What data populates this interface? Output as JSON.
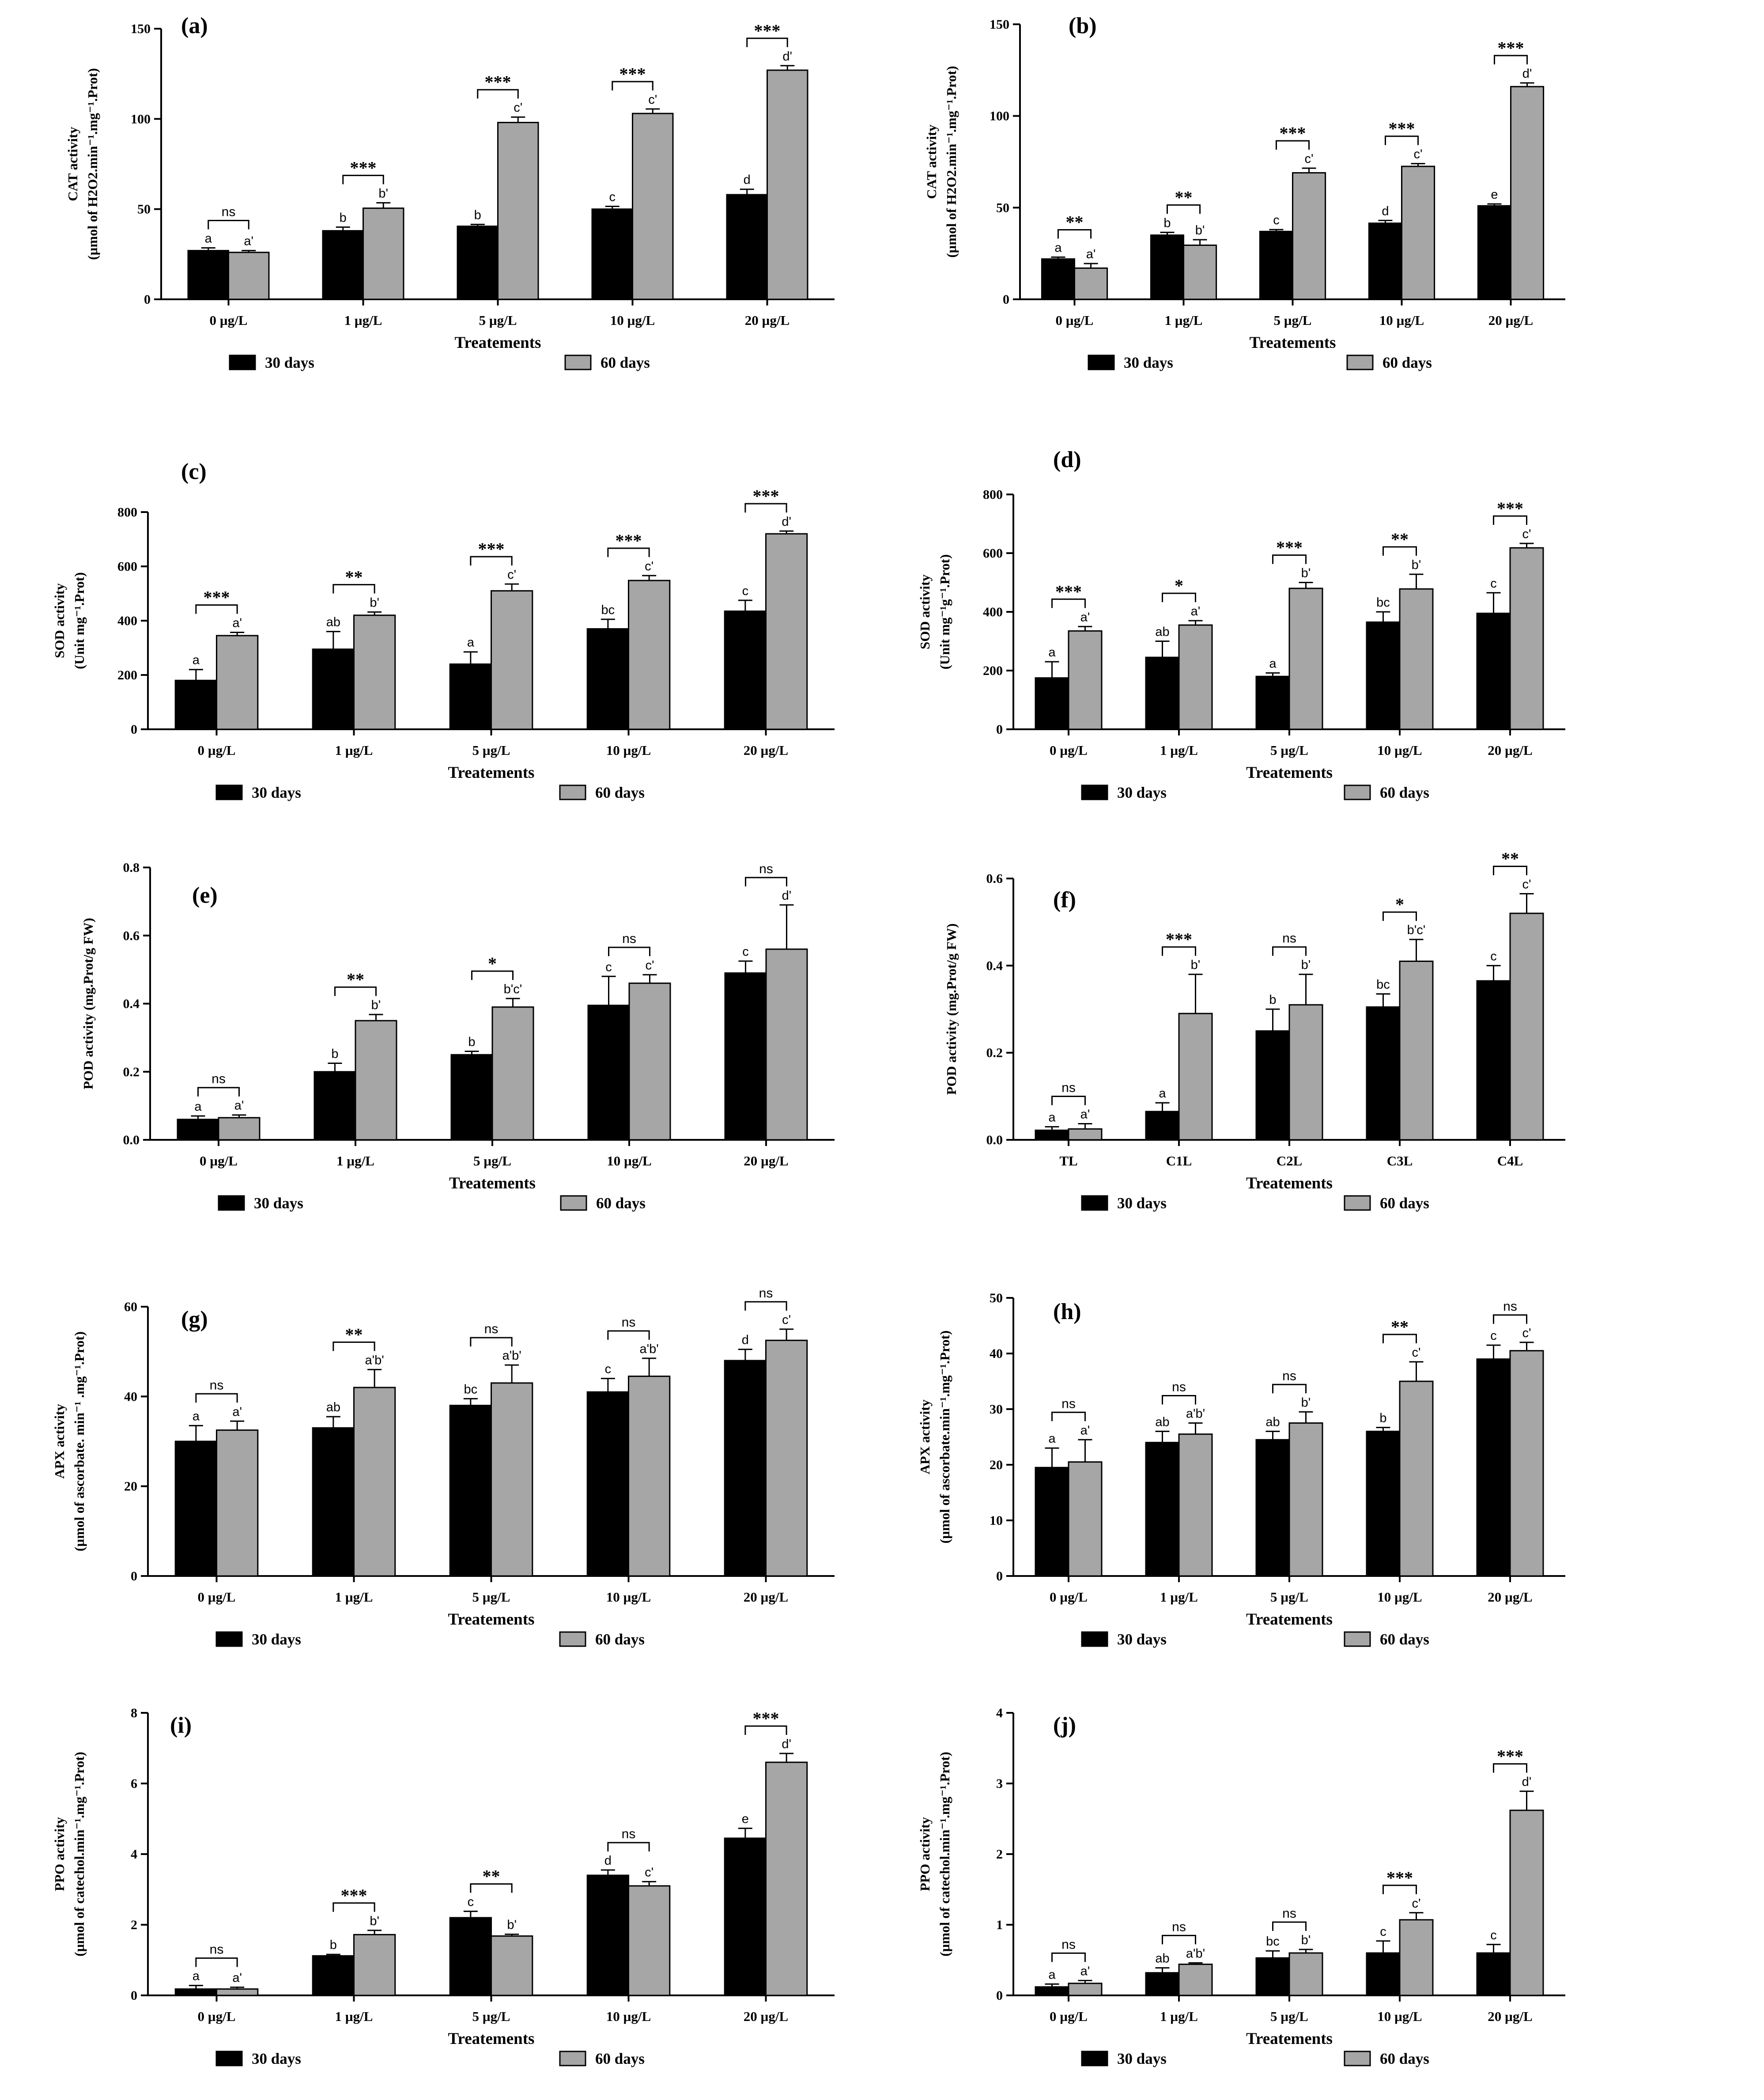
{
  "colors": {
    "series1": "#000000",
    "series2": "#a6a6a6",
    "axis": "#000000"
  },
  "chart_data": [
    {
      "type": "bar",
      "panel": "(a)",
      "ylabel": [
        "CAT activity",
        "(µmol of H2O2.min⁻¹.mg⁻¹.Prot)"
      ],
      "xlabel": "Treatements",
      "categories": [
        "0 µg/L",
        "1 µg/L",
        "5 µg/L",
        "10 µg/L",
        "20 µg/L"
      ],
      "ylim": [
        0,
        150
      ],
      "yticks": [
        0,
        50,
        100,
        150
      ],
      "series": [
        {
          "name": "30 days",
          "values": [
            27,
            38,
            40.5,
            50,
            58
          ],
          "errors": [
            1.5,
            2,
            1,
            1.5,
            3
          ],
          "letters": [
            "a",
            "b",
            "b",
            "c",
            "d"
          ]
        },
        {
          "name": "60 days",
          "values": [
            26,
            50.5,
            98,
            103,
            127
          ],
          "errors": [
            1,
            3,
            3,
            2.5,
            2.5
          ],
          "letters": [
            "a'",
            "b'",
            "c'",
            "c'",
            "d'"
          ]
        }
      ],
      "significance": [
        "ns",
        "***",
        "***",
        "***",
        "***"
      ]
    },
    {
      "type": "bar",
      "panel": "(b)",
      "ylabel": [
        "CAT activity",
        "(µmol of H2O2.min⁻¹.mg⁻¹.Prot)"
      ],
      "xlabel": "Treatements",
      "categories": [
        "0 µg/L",
        "1 µg/L",
        "5 µg/L",
        "10 µg/L",
        "20 µg/L"
      ],
      "ylim": [
        0,
        150
      ],
      "yticks": [
        0,
        50,
        100,
        150
      ],
      "series": [
        {
          "name": "30 days",
          "values": [
            22,
            35,
            37,
            41.5,
            51
          ],
          "errors": [
            1,
            1.5,
            1,
            1.5,
            1
          ],
          "letters": [
            "a",
            "b",
            "c",
            "d",
            "e"
          ]
        },
        {
          "name": "60 days",
          "values": [
            17,
            29.5,
            69,
            72.5,
            116
          ],
          "errors": [
            2.5,
            3,
            2.5,
            1.5,
            2
          ],
          "letters": [
            "a'",
            "b'",
            "c'",
            "c'",
            "d'"
          ]
        }
      ],
      "significance": [
        "**",
        "**",
        "***",
        "***",
        "***"
      ]
    },
    {
      "type": "bar",
      "panel": "(c)",
      "ylabel": [
        "SOD activity",
        "(Unit mg⁻¹.Prot)"
      ],
      "xlabel": "Treatements",
      "categories": [
        "0 µg/L",
        "1 µg/L",
        "5 µg/L",
        "10 µg/L",
        "20 µg/L"
      ],
      "ylim": [
        0,
        800
      ],
      "yticks": [
        0,
        200,
        400,
        600,
        800
      ],
      "series": [
        {
          "name": "30 days",
          "values": [
            180,
            295,
            240,
            370,
            435
          ],
          "errors": [
            40,
            65,
            45,
            35,
            40
          ],
          "letters": [
            "a",
            "ab",
            "a",
            "bc",
            "c"
          ]
        },
        {
          "name": "60 days",
          "values": [
            345,
            420,
            510,
            548,
            720
          ],
          "errors": [
            12,
            12,
            25,
            18,
            10
          ],
          "letters": [
            "a'",
            "b'",
            "c'",
            "c'",
            "d'"
          ]
        }
      ],
      "significance": [
        "***",
        "**",
        "***",
        "***",
        "***"
      ]
    },
    {
      "type": "bar",
      "panel": "(d)",
      "ylabel": [
        "SOD activity",
        "(Unit mg⁻¹g⁻¹.Prot)"
      ],
      "xlabel": "Treatements",
      "categories": [
        "0 µg/L",
        "1 µg/L",
        "5 µg/L",
        "10 µg/L",
        "20 µg/L"
      ],
      "ylim": [
        0,
        800
      ],
      "yticks": [
        0,
        200,
        400,
        600,
        800
      ],
      "series": [
        {
          "name": "30 days",
          "values": [
            175,
            245,
            180,
            365,
            395
          ],
          "errors": [
            55,
            55,
            12,
            35,
            70
          ],
          "letters": [
            "a",
            "ab",
            "a",
            "bc",
            "c"
          ]
        },
        {
          "name": "60 days",
          "values": [
            335,
            355,
            480,
            478,
            618
          ],
          "errors": [
            15,
            15,
            20,
            50,
            15
          ],
          "letters": [
            "a'",
            "a'",
            "b'",
            "b'",
            "c'"
          ]
        }
      ],
      "significance": [
        "***",
        "*",
        "***",
        "**",
        "***"
      ]
    },
    {
      "type": "bar",
      "panel": "(e)",
      "ylabel": [
        "POD activity  (mg.Prot/g FW)"
      ],
      "xlabel": "Treatements",
      "categories": [
        "0 µg/L",
        "1 µg/L",
        "5 µg/L",
        "10 µg/L",
        "20 µg/L"
      ],
      "ylim": [
        0,
        0.8
      ],
      "yticks": [
        0.0,
        0.2,
        0.4,
        0.6,
        0.8
      ],
      "series": [
        {
          "name": "30 days",
          "values": [
            0.06,
            0.2,
            0.25,
            0.395,
            0.49
          ],
          "errors": [
            0.01,
            0.025,
            0.01,
            0.085,
            0.035
          ],
          "letters": [
            "a",
            "b",
            "b",
            "c",
            "c"
          ]
        },
        {
          "name": "60 days",
          "values": [
            0.065,
            0.35,
            0.39,
            0.46,
            0.56
          ],
          "errors": [
            0.008,
            0.018,
            0.025,
            0.025,
            0.13
          ],
          "letters": [
            "a'",
            "b'",
            "b'c'",
            "c'",
            "d'"
          ]
        }
      ],
      "significance": [
        "ns",
        "**",
        "*",
        "ns",
        "ns"
      ]
    },
    {
      "type": "bar",
      "panel": "(f)",
      "ylabel": [
        "POD activity (mg.Prot/g FW)"
      ],
      "xlabel": "Treatements",
      "categories": [
        "TL",
        "C1L",
        "C2L",
        "C3L",
        "C4L"
      ],
      "ylim": [
        0,
        0.6
      ],
      "yticks": [
        0.0,
        0.2,
        0.4,
        0.6
      ],
      "series": [
        {
          "name": "30 days",
          "values": [
            0.022,
            0.065,
            0.25,
            0.305,
            0.365
          ],
          "errors": [
            0.008,
            0.02,
            0.05,
            0.03,
            0.035
          ],
          "letters": [
            "a",
            "a",
            "b",
            "bc",
            "c"
          ]
        },
        {
          "name": "60 days",
          "values": [
            0.025,
            0.29,
            0.31,
            0.41,
            0.52
          ],
          "errors": [
            0.012,
            0.09,
            0.07,
            0.05,
            0.045
          ],
          "letters": [
            "a'",
            "b'",
            "b'",
            "b'c'",
            "c'"
          ]
        }
      ],
      "significance": [
        "ns",
        "***",
        "ns",
        "*",
        "**"
      ]
    },
    {
      "type": "bar",
      "panel": "(g)",
      "ylabel": [
        "APX activity",
        "(µmol of ascorbate. min⁻¹ .mg⁻¹.Prot)"
      ],
      "xlabel": "Treatements",
      "categories": [
        "0 µg/L",
        "1 µg/L",
        "5 µg/L",
        "10 µg/L",
        "20 µg/L"
      ],
      "ylim": [
        0,
        60
      ],
      "yticks": [
        0,
        20,
        40,
        60
      ],
      "series": [
        {
          "name": "30 days",
          "values": [
            30,
            33,
            38,
            41,
            48
          ],
          "errors": [
            3.5,
            2.5,
            1.5,
            3,
            2.5
          ],
          "letters": [
            "a",
            "ab",
            "bc",
            "c",
            "d"
          ]
        },
        {
          "name": "60 days",
          "values": [
            32.5,
            42,
            43,
            44.5,
            52.5
          ],
          "errors": [
            2,
            4,
            4,
            4,
            2.5
          ],
          "letters": [
            "a'",
            "a'b'",
            "a'b'",
            "a'b'",
            "c'"
          ]
        }
      ],
      "significance": [
        "ns",
        "**",
        "ns",
        "ns",
        "ns"
      ]
    },
    {
      "type": "bar",
      "panel": "(h)",
      "ylabel": [
        "APX activity",
        "(µmol of ascorbate.min⁻¹.mg⁻¹.Prot)"
      ],
      "xlabel": "Treatements",
      "categories": [
        "0 µg/L",
        "1 µg/L",
        "5 µg/L",
        "10 µg/L",
        "20 µg/L"
      ],
      "ylim": [
        0,
        50
      ],
      "yticks": [
        0,
        10,
        20,
        30,
        40,
        50
      ],
      "series": [
        {
          "name": "30 days",
          "values": [
            19.5,
            24,
            24.5,
            26,
            39
          ],
          "errors": [
            3.5,
            2,
            1.5,
            0.7,
            2.5
          ],
          "letters": [
            "a",
            "ab",
            "ab",
            "b",
            "c"
          ]
        },
        {
          "name": "60 days",
          "values": [
            20.5,
            25.5,
            27.5,
            35,
            40.5
          ],
          "errors": [
            4,
            2,
            2,
            3.5,
            1.5
          ],
          "letters": [
            "a'",
            "a'b'",
            "b'",
            "c'",
            "c'"
          ]
        }
      ],
      "significance": [
        "ns",
        "ns",
        "ns",
        "**",
        "ns"
      ]
    },
    {
      "type": "bar",
      "panel": "(i)",
      "ylabel": [
        "PPO activity",
        "(µmol of catechol.min⁻¹.mg⁻¹.Prot)"
      ],
      "xlabel": "Treatements",
      "categories": [
        "0 µg/L",
        "1 µg/L",
        "5 µg/L",
        "10 µg/L",
        "20 µg/L"
      ],
      "ylim": [
        0,
        8
      ],
      "yticks": [
        0,
        2,
        4,
        6,
        8
      ],
      "series": [
        {
          "name": "30 days",
          "values": [
            0.18,
            1.12,
            2.2,
            3.4,
            4.45
          ],
          "errors": [
            0.1,
            0.04,
            0.18,
            0.15,
            0.28
          ],
          "letters": [
            "a",
            "b",
            "c",
            "d",
            "e"
          ]
        },
        {
          "name": "60 days",
          "values": [
            0.18,
            1.72,
            1.68,
            3.1,
            6.6
          ],
          "errors": [
            0.05,
            0.12,
            0.05,
            0.12,
            0.25
          ],
          "letters": [
            "a'",
            "b'",
            "b'",
            "c'",
            "d'"
          ]
        }
      ],
      "significance": [
        "ns",
        "***",
        "**",
        "ns",
        "***"
      ]
    },
    {
      "type": "bar",
      "panel": "(j)",
      "ylabel": [
        "PPO activity",
        "(µmol of catechol.min⁻¹.mg⁻¹.Prot)"
      ],
      "xlabel": "Treatements",
      "categories": [
        "0 µg/L",
        "1 µg/L",
        "5 µg/L",
        "10 µg/L",
        "20 µg/L"
      ],
      "ylim": [
        0,
        4
      ],
      "yticks": [
        0,
        1,
        2,
        3,
        4
      ],
      "series": [
        {
          "name": "30 days",
          "values": [
            0.12,
            0.32,
            0.53,
            0.6,
            0.6
          ],
          "errors": [
            0.04,
            0.07,
            0.1,
            0.17,
            0.12
          ],
          "letters": [
            "a",
            "ab",
            "bc",
            "c",
            "c"
          ]
        },
        {
          "name": "60 days",
          "values": [
            0.17,
            0.44,
            0.6,
            1.07,
            2.62
          ],
          "errors": [
            0.04,
            0.02,
            0.05,
            0.1,
            0.27
          ],
          "letters": [
            "a'",
            "a'b'",
            "b'",
            "c'",
            "d'"
          ]
        }
      ],
      "significance": [
        "ns",
        "ns",
        "ns",
        "***",
        "***"
      ]
    }
  ]
}
